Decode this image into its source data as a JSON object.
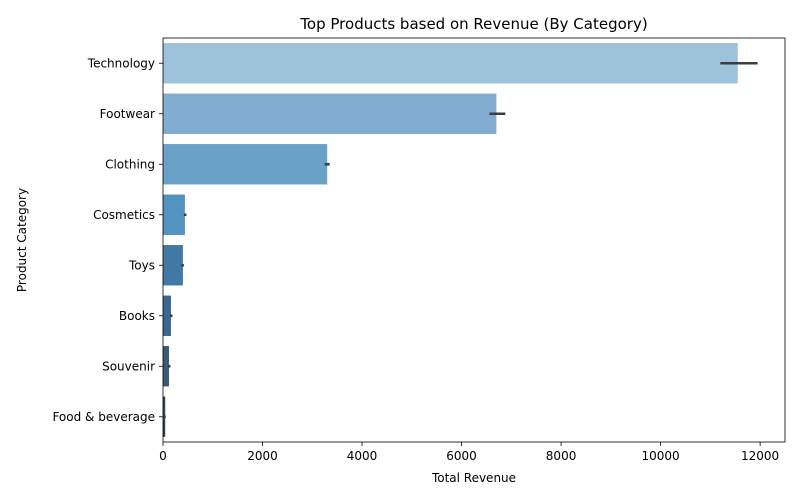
{
  "chart_data": {
    "type": "bar",
    "orientation": "horizontal",
    "title": "Top Products based on Revenue (By Category)",
    "xlabel": "Total Revenue",
    "ylabel": "Product Category",
    "xlim": [
      0,
      12500
    ],
    "xticks": [
      0,
      2000,
      4000,
      6000,
      8000,
      10000,
      12000
    ],
    "grid": false,
    "legend": "none",
    "categories": [
      "Technology",
      "Footwear",
      "Clothing",
      "Cosmetics",
      "Toys",
      "Books",
      "Souvenir",
      "Food & beverage"
    ],
    "values": [
      11550,
      6700,
      3300,
      440,
      400,
      160,
      120,
      45
    ],
    "error_low": [
      11200,
      6560,
      3250,
      420,
      370,
      140,
      100,
      38
    ],
    "error_high": [
      11950,
      6880,
      3350,
      470,
      420,
      190,
      150,
      55
    ],
    "colors": [
      "#9cc3da",
      "#83add0",
      "#6aa1c7",
      "#5293c2",
      "#4179a4",
      "#3c6790",
      "#3a5877",
      "#374757"
    ]
  }
}
